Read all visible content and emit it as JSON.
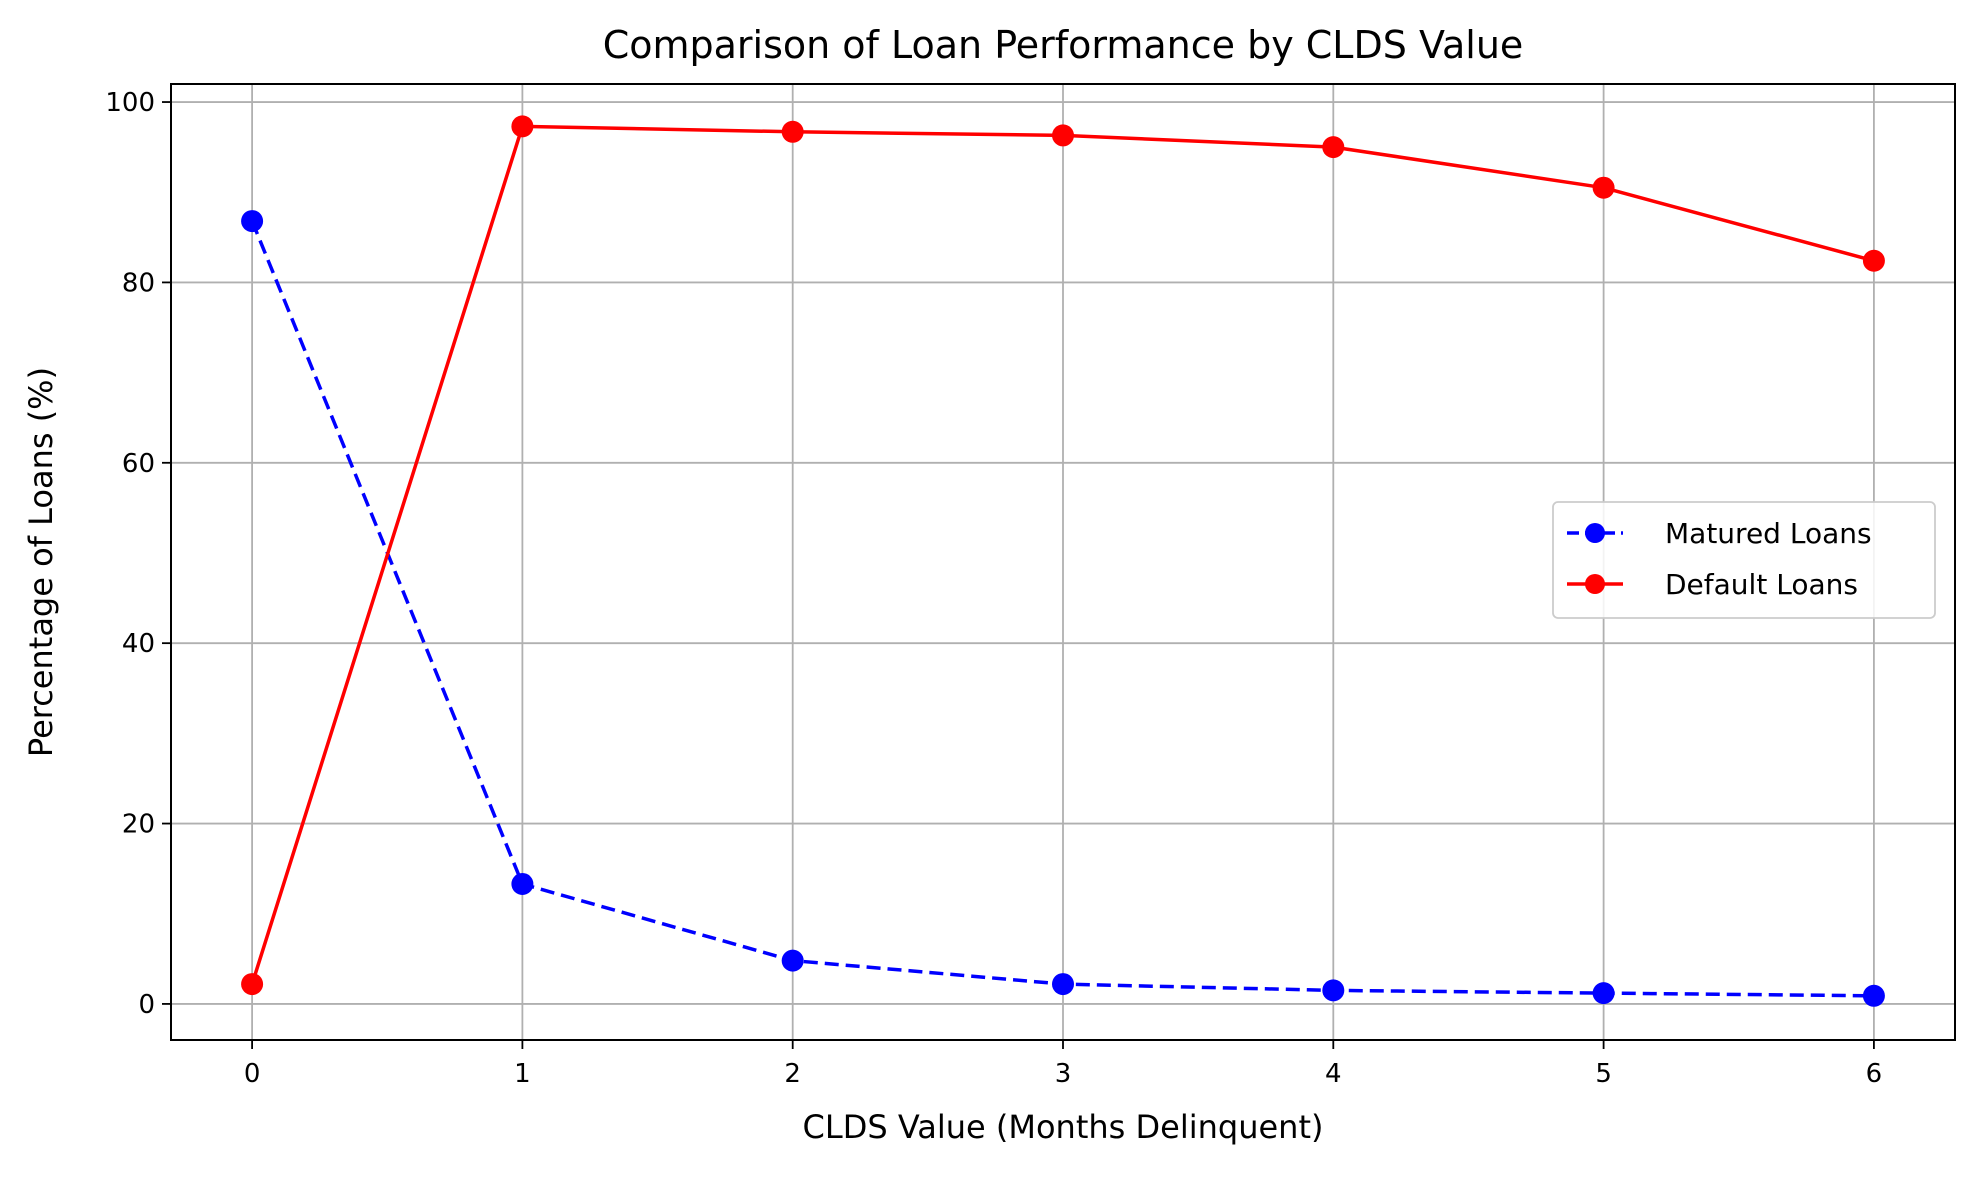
{
  "chart_data": {
    "type": "line",
    "title": "Comparison of Loan Performance by CLDS Value",
    "xlabel": "CLDS Value (Months Delinquent)",
    "ylabel": "Percentage of Loans (%)",
    "x": [
      0,
      1,
      2,
      3,
      4,
      5,
      6
    ],
    "xticks": [
      0,
      1,
      2,
      3,
      4,
      5,
      6
    ],
    "yticks": [
      0,
      20,
      40,
      60,
      80,
      100
    ],
    "xlim": [
      -0.3,
      6.3
    ],
    "ylim": [
      -4,
      102
    ],
    "grid": true,
    "legend_position": "center-right",
    "series": [
      {
        "name": "Matured Loans",
        "values": [
          86.8,
          13.3,
          4.8,
          2.2,
          1.5,
          1.2,
          0.9
        ],
        "color": "#0000ff",
        "line_style": "dashed",
        "marker": "circle"
      },
      {
        "name": "Default Loans",
        "values": [
          2.2,
          97.3,
          96.7,
          96.3,
          95.0,
          90.5,
          82.4
        ],
        "color": "#ff0000",
        "line_style": "solid",
        "marker": "circle"
      }
    ]
  }
}
